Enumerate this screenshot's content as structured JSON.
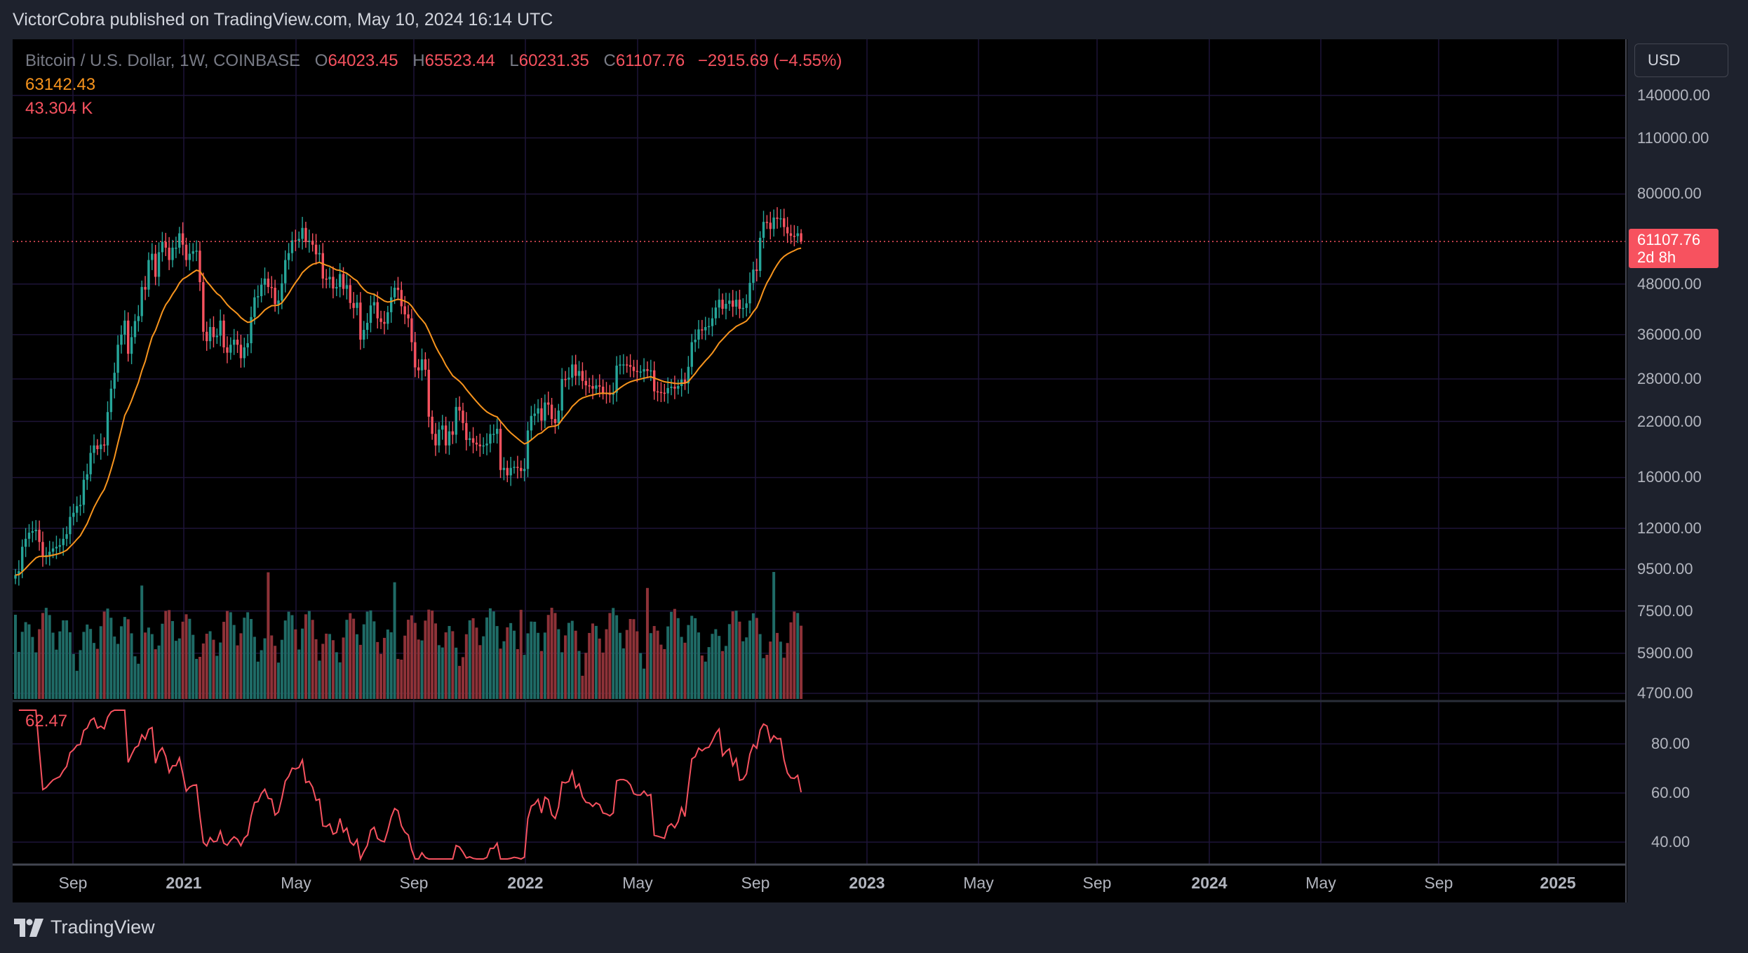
{
  "header": {
    "published_text": "VictorCobra published on TradingView.com, May 10, 2024 16:14 UTC"
  },
  "legend": {
    "symbol": "Bitcoin / U.S. Dollar, 1W, COINBASE",
    "open_key": "O",
    "open_value": "64023.45",
    "high_key": "H",
    "high_value": "65523.44",
    "low_key": "L",
    "low_value": "60231.35",
    "close_key": "C",
    "close_value": "61107.76",
    "change": "−2915.69 (−4.55%)",
    "ema_value": "63142.43",
    "volume_value": "43.304 K"
  },
  "rsi": {
    "value": "62.47"
  },
  "price_scale": {
    "currency": "USD",
    "last_price": "61107.76",
    "countdown": "2d 8h",
    "price_ticks": [
      "140000.00",
      "110000.00",
      "80000.00",
      "48000.00",
      "36000.00",
      "28000.00",
      "22000.00",
      "16000.00",
      "12000.00",
      "9500.00",
      "7500.00",
      "5900.00",
      "4700.00"
    ],
    "rsi_ticks": [
      "80.00",
      "60.00",
      "40.00"
    ]
  },
  "time_scale": {
    "labels": [
      "Sep",
      "2021",
      "May",
      "Sep",
      "2022",
      "May",
      "Sep",
      "2023",
      "May",
      "Sep",
      "2024",
      "May",
      "Sep",
      "2025"
    ]
  },
  "footer": {
    "brand": "TradingView"
  },
  "colors": {
    "up": "#26a69a",
    "down": "#f7525f",
    "ema": "#f7941d",
    "rsi": "#f7525f",
    "vol_up": "#1f6b66",
    "vol_down": "#8e3238",
    "grid": "#1e1438",
    "background": "#000000",
    "frame": "#1e222d"
  },
  "chart_data": {
    "type": "candlestick",
    "timeframe": "1W",
    "exchange": "COINBASE",
    "scale": "log",
    "grid": true,
    "price_range": [
      4700,
      140000
    ],
    "rsi_range": [
      30,
      80
    ],
    "last_price": 61107.76,
    "last_open": 64023.45,
    "last_high": 65523.44,
    "last_low": 60231.35,
    "ema_last": 63142.43,
    "volume_last": 43304,
    "rsi_last": 62.47,
    "weekly_closes": [
      9200,
      9400,
      10800,
      11300,
      11700,
      11800,
      11900,
      11100,
      10200,
      10300,
      10500,
      10700,
      10800,
      10900,
      11300,
      11600,
      12800,
      13100,
      13600,
      13700,
      15800,
      16300,
      18400,
      19200,
      18800,
      19300,
      19200,
      23200,
      26500,
      29000,
      34000,
      36000,
      39000,
      32300,
      35500,
      38900,
      40000,
      47200,
      46500,
      55000,
      57000,
      50000,
      57500,
      61000,
      59000,
      55000,
      59000,
      59000,
      64000,
      60000,
      55000,
      57000,
      57800,
      58000,
      48500,
      36600,
      34700,
      37600,
      35500,
      35800,
      39000,
      33500,
      32500,
      34000,
      35000,
      34000,
      31500,
      33500,
      34300,
      39800,
      44500,
      44800,
      47800,
      49500,
      47200,
      47000,
      42800,
      43700,
      48200,
      55000,
      57200,
      61500,
      61300,
      62000,
      66000,
      60900,
      61400,
      60000,
      56800,
      57200,
      49500,
      49300,
      50000,
      46800,
      47200,
      50800,
      46700,
      47700,
      43100,
      41900,
      43200,
      35000,
      37000,
      38500,
      42500,
      43300,
      39500,
      38700,
      38300,
      40900,
      44500,
      47000,
      46400,
      42300,
      40400,
      39500,
      34500,
      29900,
      29400,
      31300,
      29500,
      22600,
      20500,
      19200,
      21000,
      21500,
      19200,
      20800,
      20400,
      23900,
      23400,
      21800,
      19800,
      20000,
      19500,
      19300,
      19100,
      19200,
      19400,
      20500,
      20500,
      21100,
      16700,
      16900,
      16200,
      16900,
      17000,
      16900,
      16600,
      16800,
      20900,
      22700,
      23000,
      23700,
      22100,
      24500,
      24200,
      22300,
      21800,
      23400,
      28000,
      27900,
      28200,
      30400,
      28500,
      29300,
      27700,
      27000,
      26900,
      26500,
      27000,
      26800,
      25900,
      25800,
      25600,
      25900,
      30200,
      30400,
      30400,
      30300,
      30000,
      29300,
      29200,
      29200,
      29600,
      29300,
      29400,
      26100,
      26000,
      25900,
      25800,
      26600,
      26800,
      26500,
      26900,
      27900,
      27300,
      30000,
      34500,
      35000,
      37100,
      36900,
      37600,
      37800,
      39500,
      42000,
      43900,
      41700,
      42900,
      43700,
      42200,
      43900,
      41700,
      41900,
      43000,
      48300,
      52100,
      51700,
      62400,
      68300,
      68000,
      65600,
      70000,
      69500,
      69700,
      66300,
      64000,
      63100,
      63000,
      64000,
      61100
    ]
  }
}
